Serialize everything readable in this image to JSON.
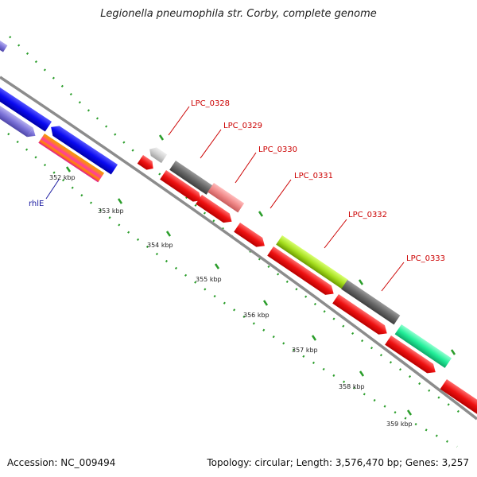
{
  "title": "Legionella pneumophila str. Corby, complete genome",
  "footer": {
    "accession": "Accession: NC_009494",
    "summary": "Topology: circular; Length: 3,576,470 bp; Genes: 3,257"
  },
  "ticks": [
    "352 kbp",
    "353 kbp",
    "354 kbp",
    "355 kbp",
    "356 kbp",
    "357 kbp",
    "358 kbp",
    "359 kbp"
  ],
  "gene_labels": [
    "LPC_0328",
    "LPC_0329",
    "LPC_0330",
    "LPC_0331",
    "LPC_0332",
    "LPC_0333"
  ],
  "other_label": "rhlE",
  "colors": {
    "backbone": "#8c8c8c",
    "red": "#ee1111",
    "blue": "#0a0af0",
    "purple": "#7b72d8",
    "grey": "#666666",
    "lightgrey": "#cfcfcf",
    "pink": "#f08888",
    "lime": "#a8e020",
    "aqua": "#22ee99",
    "ruler": "#2a9d2a",
    "label_red": "#cc0000",
    "label_blue": "#1a1aa0"
  }
}
